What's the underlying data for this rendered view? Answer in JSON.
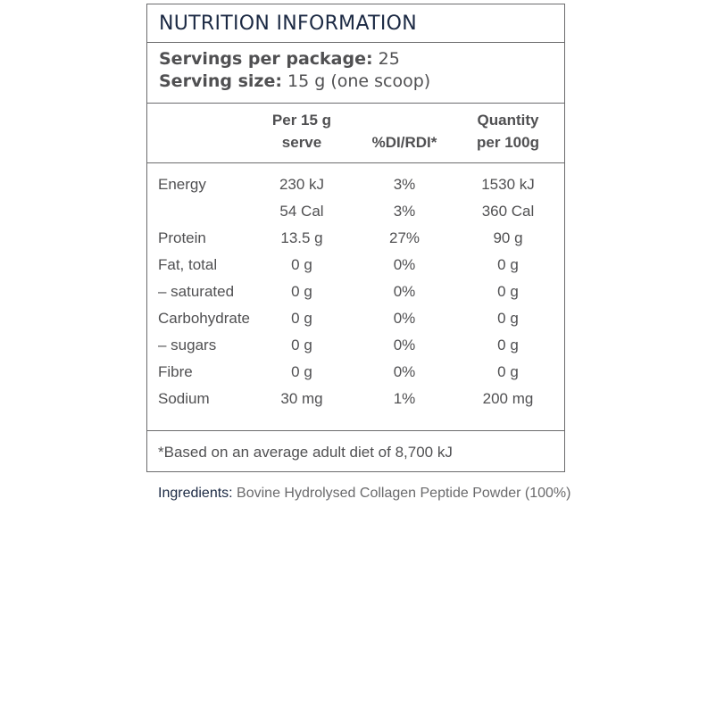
{
  "panel": {
    "title": "NUTRITION INFORMATION",
    "servings_label": "Servings per package:",
    "servings_value": "25",
    "serving_size_label": "Serving size:",
    "serving_size_value": "15 g (one scoop)"
  },
  "columns": {
    "per_serve_line1": "Per 15 g",
    "per_serve_line2": "serve",
    "di": "%DI/RDI*",
    "per100_line1": "Quantity",
    "per100_line2": "per 100g"
  },
  "rows": [
    {
      "name": "Energy",
      "per_serve": "230 kJ",
      "di": "3%",
      "per_100g": "1530 kJ"
    },
    {
      "name": "",
      "per_serve": "54 Cal",
      "di": "3%",
      "per_100g": "360 Cal"
    },
    {
      "name": "Protein",
      "per_serve": "13.5 g",
      "di": "27%",
      "per_100g": "90 g"
    },
    {
      "name": "Fat, total",
      "per_serve": "0 g",
      "di": "0%",
      "per_100g": "0 g"
    },
    {
      "name": "– saturated",
      "per_serve": "0 g",
      "di": "0%",
      "per_100g": "0 g"
    },
    {
      "name": "Carbohydrate",
      "per_serve": "0 g",
      "di": "0%",
      "per_100g": "0 g"
    },
    {
      "name": "– sugars",
      "per_serve": "0 g",
      "di": "0%",
      "per_100g": "0 g"
    },
    {
      "name": "Fibre",
      "per_serve": "0 g",
      "di": "0%",
      "per_100g": "0 g"
    },
    {
      "name": "Sodium",
      "per_serve": "30 mg",
      "di": "1%",
      "per_100g": "200 mg"
    }
  ],
  "footnote": "*Based on an average adult diet of 8,700 kJ",
  "ingredients": {
    "label": "Ingredients:",
    "text": " Bovine Hydrolysed Collagen Peptide Powder (100%)"
  }
}
